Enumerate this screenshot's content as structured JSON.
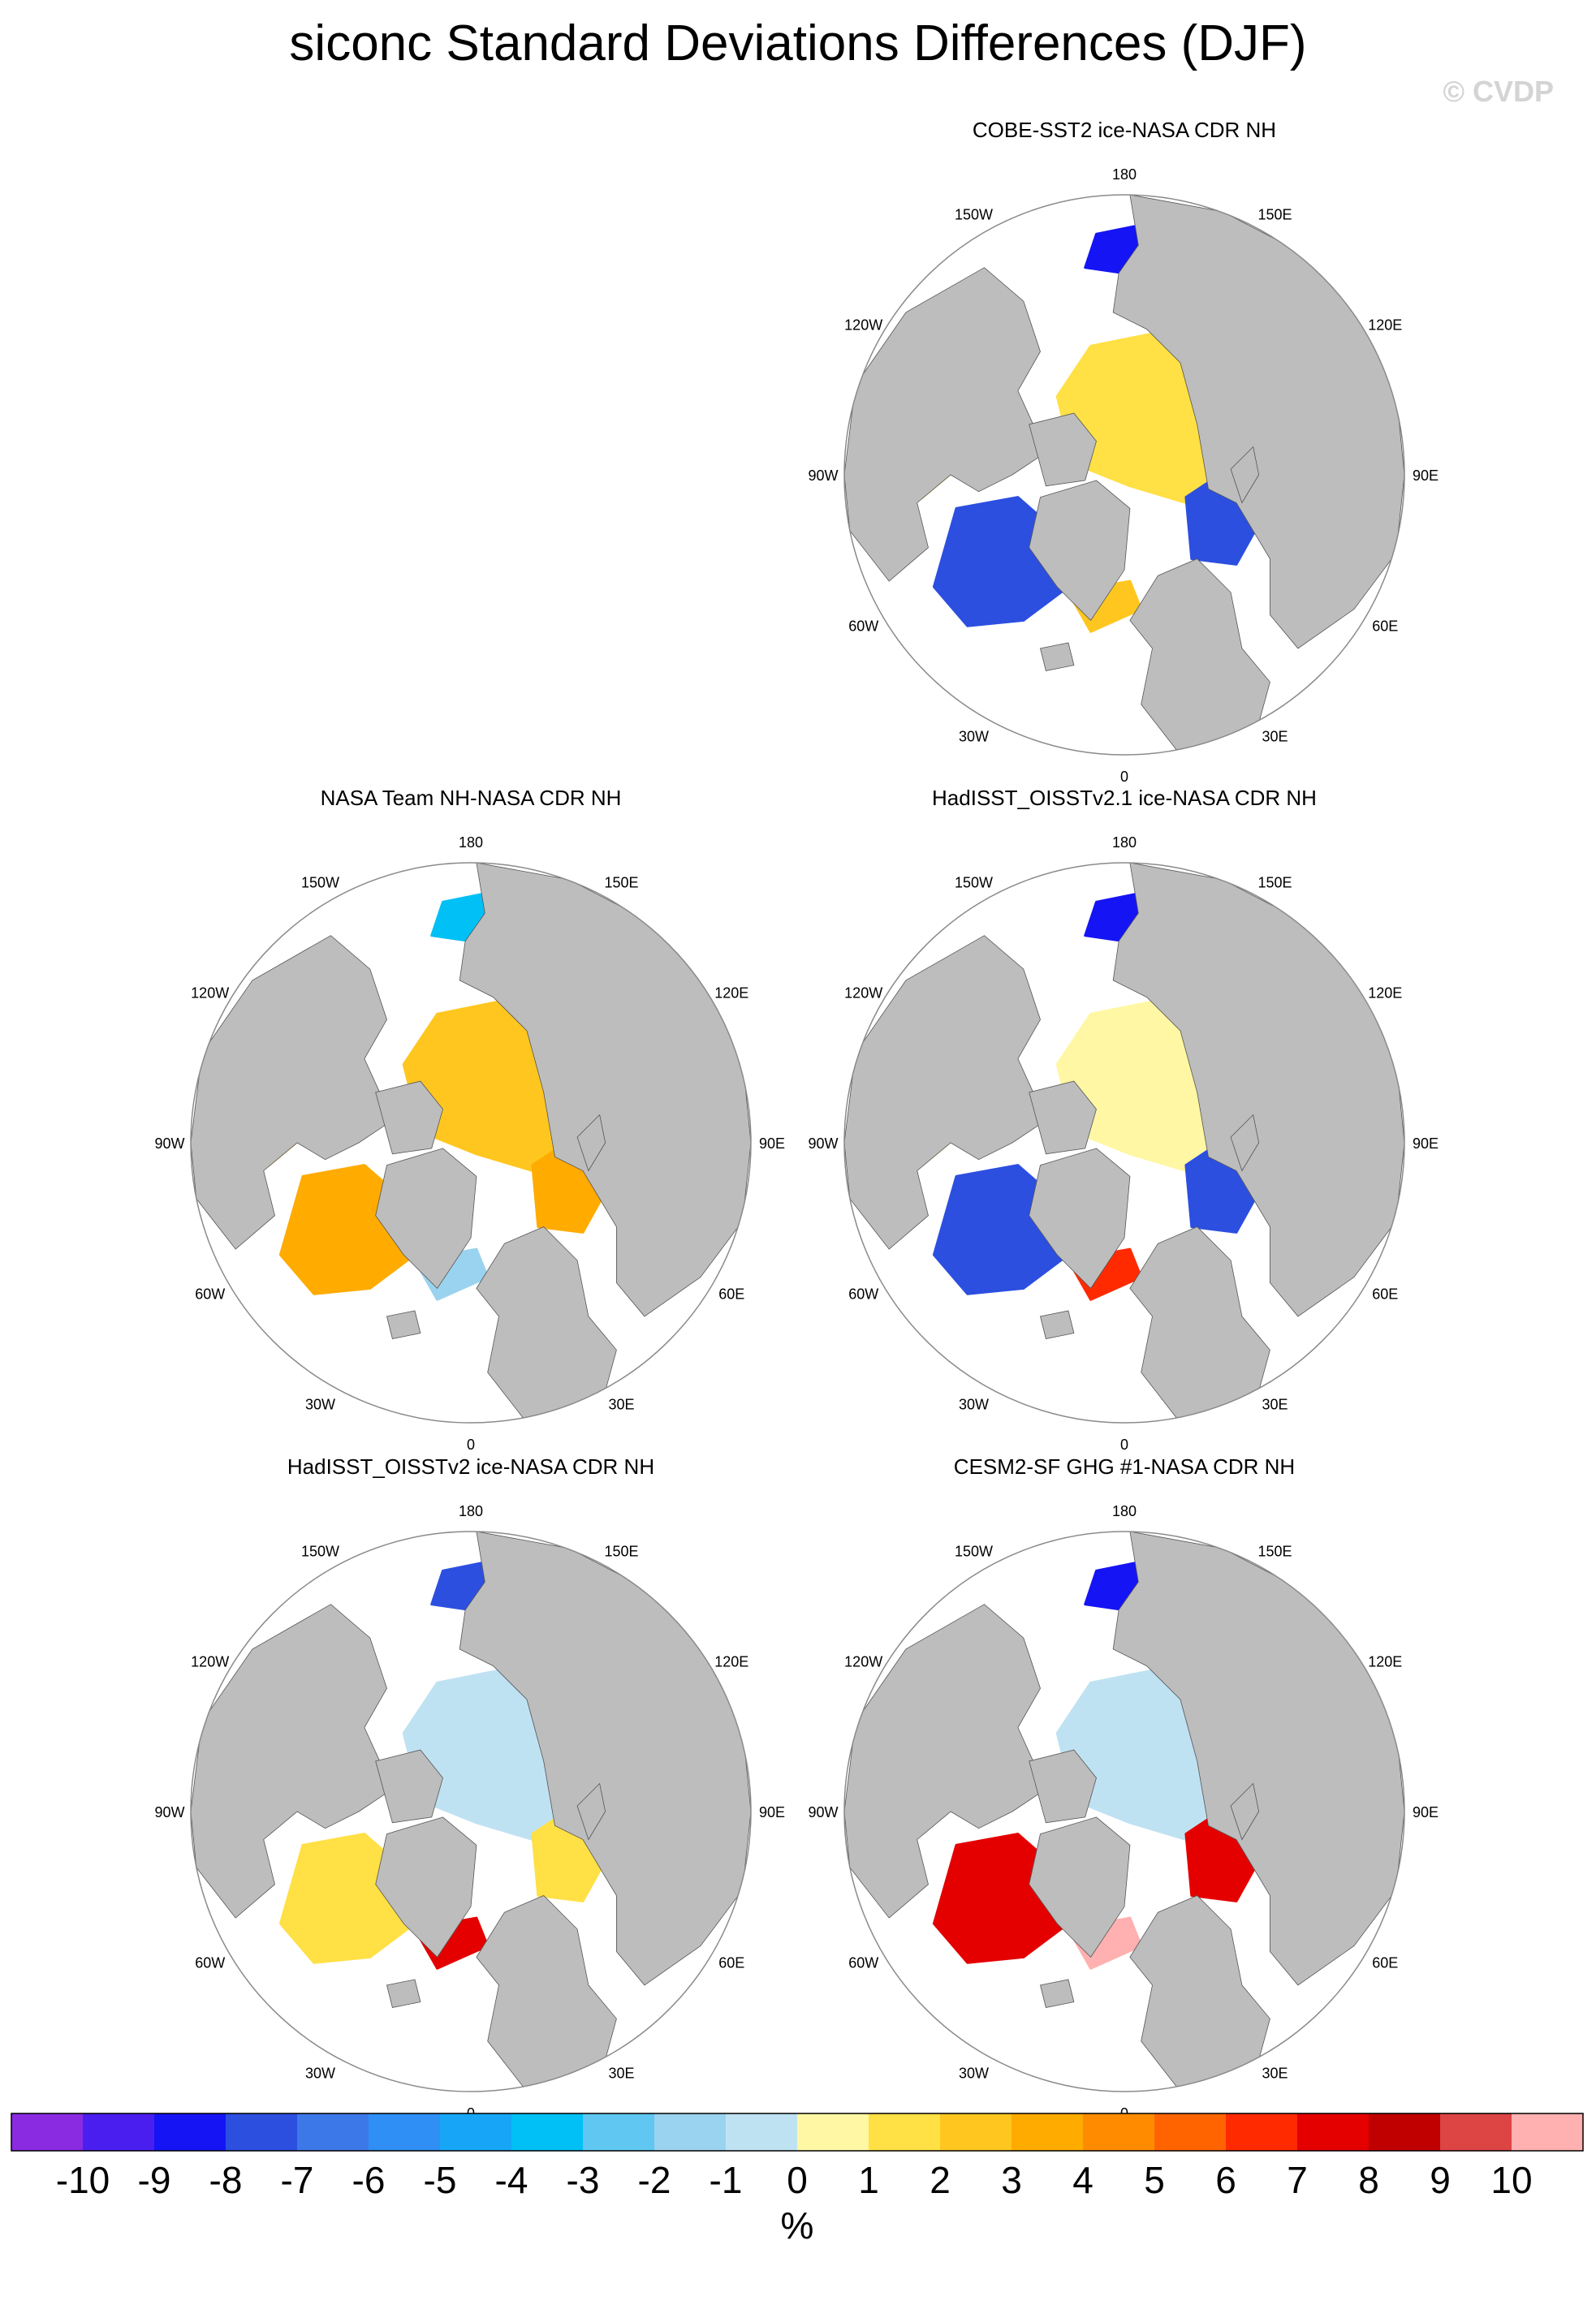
{
  "title": "siconc Standard Deviations Differences (DJF)",
  "watermark": "© CVDP",
  "longitude_labels": [
    "180",
    "150E",
    "120E",
    "90E",
    "60E",
    "30E",
    "0",
    "30W",
    "60W",
    "90W",
    "120W",
    "150W"
  ],
  "colors": {
    "land": "#bdbdbd",
    "ocean": "#ffffff",
    "scale": [
      "#8a2be2",
      "#4b1ef0",
      "#1414f5",
      "#2c4fe0",
      "#3d78e8",
      "#2f8ff5",
      "#17a6f7",
      "#00c0f5",
      "#5fc7f2",
      "#9ad3ef",
      "#bfe2f3",
      "#fff7a3",
      "#ffe045",
      "#ffc61f",
      "#ffab00",
      "#ff8c00",
      "#ff6400",
      "#ff2a00",
      "#e50000",
      "#c00000",
      "#dd4444",
      "#ffb0b0"
    ]
  },
  "chart_data": [
    {
      "type": "heatmap",
      "title": "COBE-SST2 ice-NASA CDR NH",
      "dominant_values": [
        1,
        -8,
        -9,
        2
      ],
      "pattern": "cobe"
    },
    {
      "type": "heatmap",
      "title": "NASA Team NH-NASA CDR NH",
      "dominant_values": [
        2,
        3,
        -4,
        -2
      ],
      "pattern": "team"
    },
    {
      "type": "heatmap",
      "title": "HadISST_OISSTv2.1 ice-NASA CDR NH",
      "dominant_values": [
        0,
        -8,
        -9,
        6
      ],
      "pattern": "had21"
    },
    {
      "type": "heatmap",
      "title": "HadISST_OISSTv2 ice-NASA CDR NH",
      "dominant_values": [
        -1,
        1,
        -8,
        7
      ],
      "pattern": "had2"
    },
    {
      "type": "heatmap",
      "title": "CESM2-SF GHG #1-NASA CDR NH",
      "dominant_values": [
        -1,
        7,
        -9,
        10
      ],
      "pattern": "cesm"
    }
  ],
  "colorbar": {
    "tick_labels": [
      "-10",
      "-9",
      "-8",
      "-7",
      "-6",
      "-5",
      "-4",
      "-3",
      "-2",
      "-1",
      "0",
      "1",
      "2",
      "3",
      "4",
      "5",
      "6",
      "7",
      "8",
      "9",
      "10"
    ],
    "unit": "%"
  }
}
